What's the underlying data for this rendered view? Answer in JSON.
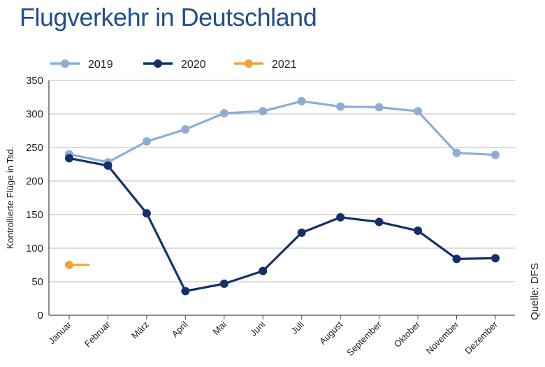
{
  "title": "Flugverkehr in Deutschland",
  "source": "Quelle: DFS",
  "colors": {
    "title": "#1f4e8c",
    "grid": "#b8b8b8",
    "axis": "#444444"
  },
  "chart_data": {
    "type": "line",
    "title": "Flugverkehr in Deutschland",
    "xlabel": "",
    "ylabel": "Kontrollierte Flüge in Tsd.",
    "ylim": [
      0,
      350
    ],
    "yticks": [
      0,
      50,
      100,
      150,
      200,
      250,
      300,
      350
    ],
    "grid": true,
    "legend": "top-left",
    "categories": [
      "Januar",
      "Februar",
      "März",
      "April",
      "Mai",
      "Juni",
      "Juli",
      "August",
      "September",
      "Oktober",
      "November",
      "Dezember"
    ],
    "series": [
      {
        "name": "2019",
        "color": "#8eadd4",
        "values": [
          240,
          228,
          259,
          277,
          301,
          304,
          319,
          311,
          310,
          304,
          242,
          239
        ]
      },
      {
        "name": "2020",
        "color": "#13306b",
        "values": [
          234,
          223,
          152,
          36,
          47,
          66,
          123,
          146,
          139,
          126,
          84,
          85
        ]
      },
      {
        "name": "2021",
        "color": "#f2a33a",
        "values": [
          75,
          null,
          null,
          null,
          null,
          null,
          null,
          null,
          null,
          null,
          null,
          null
        ]
      }
    ]
  }
}
